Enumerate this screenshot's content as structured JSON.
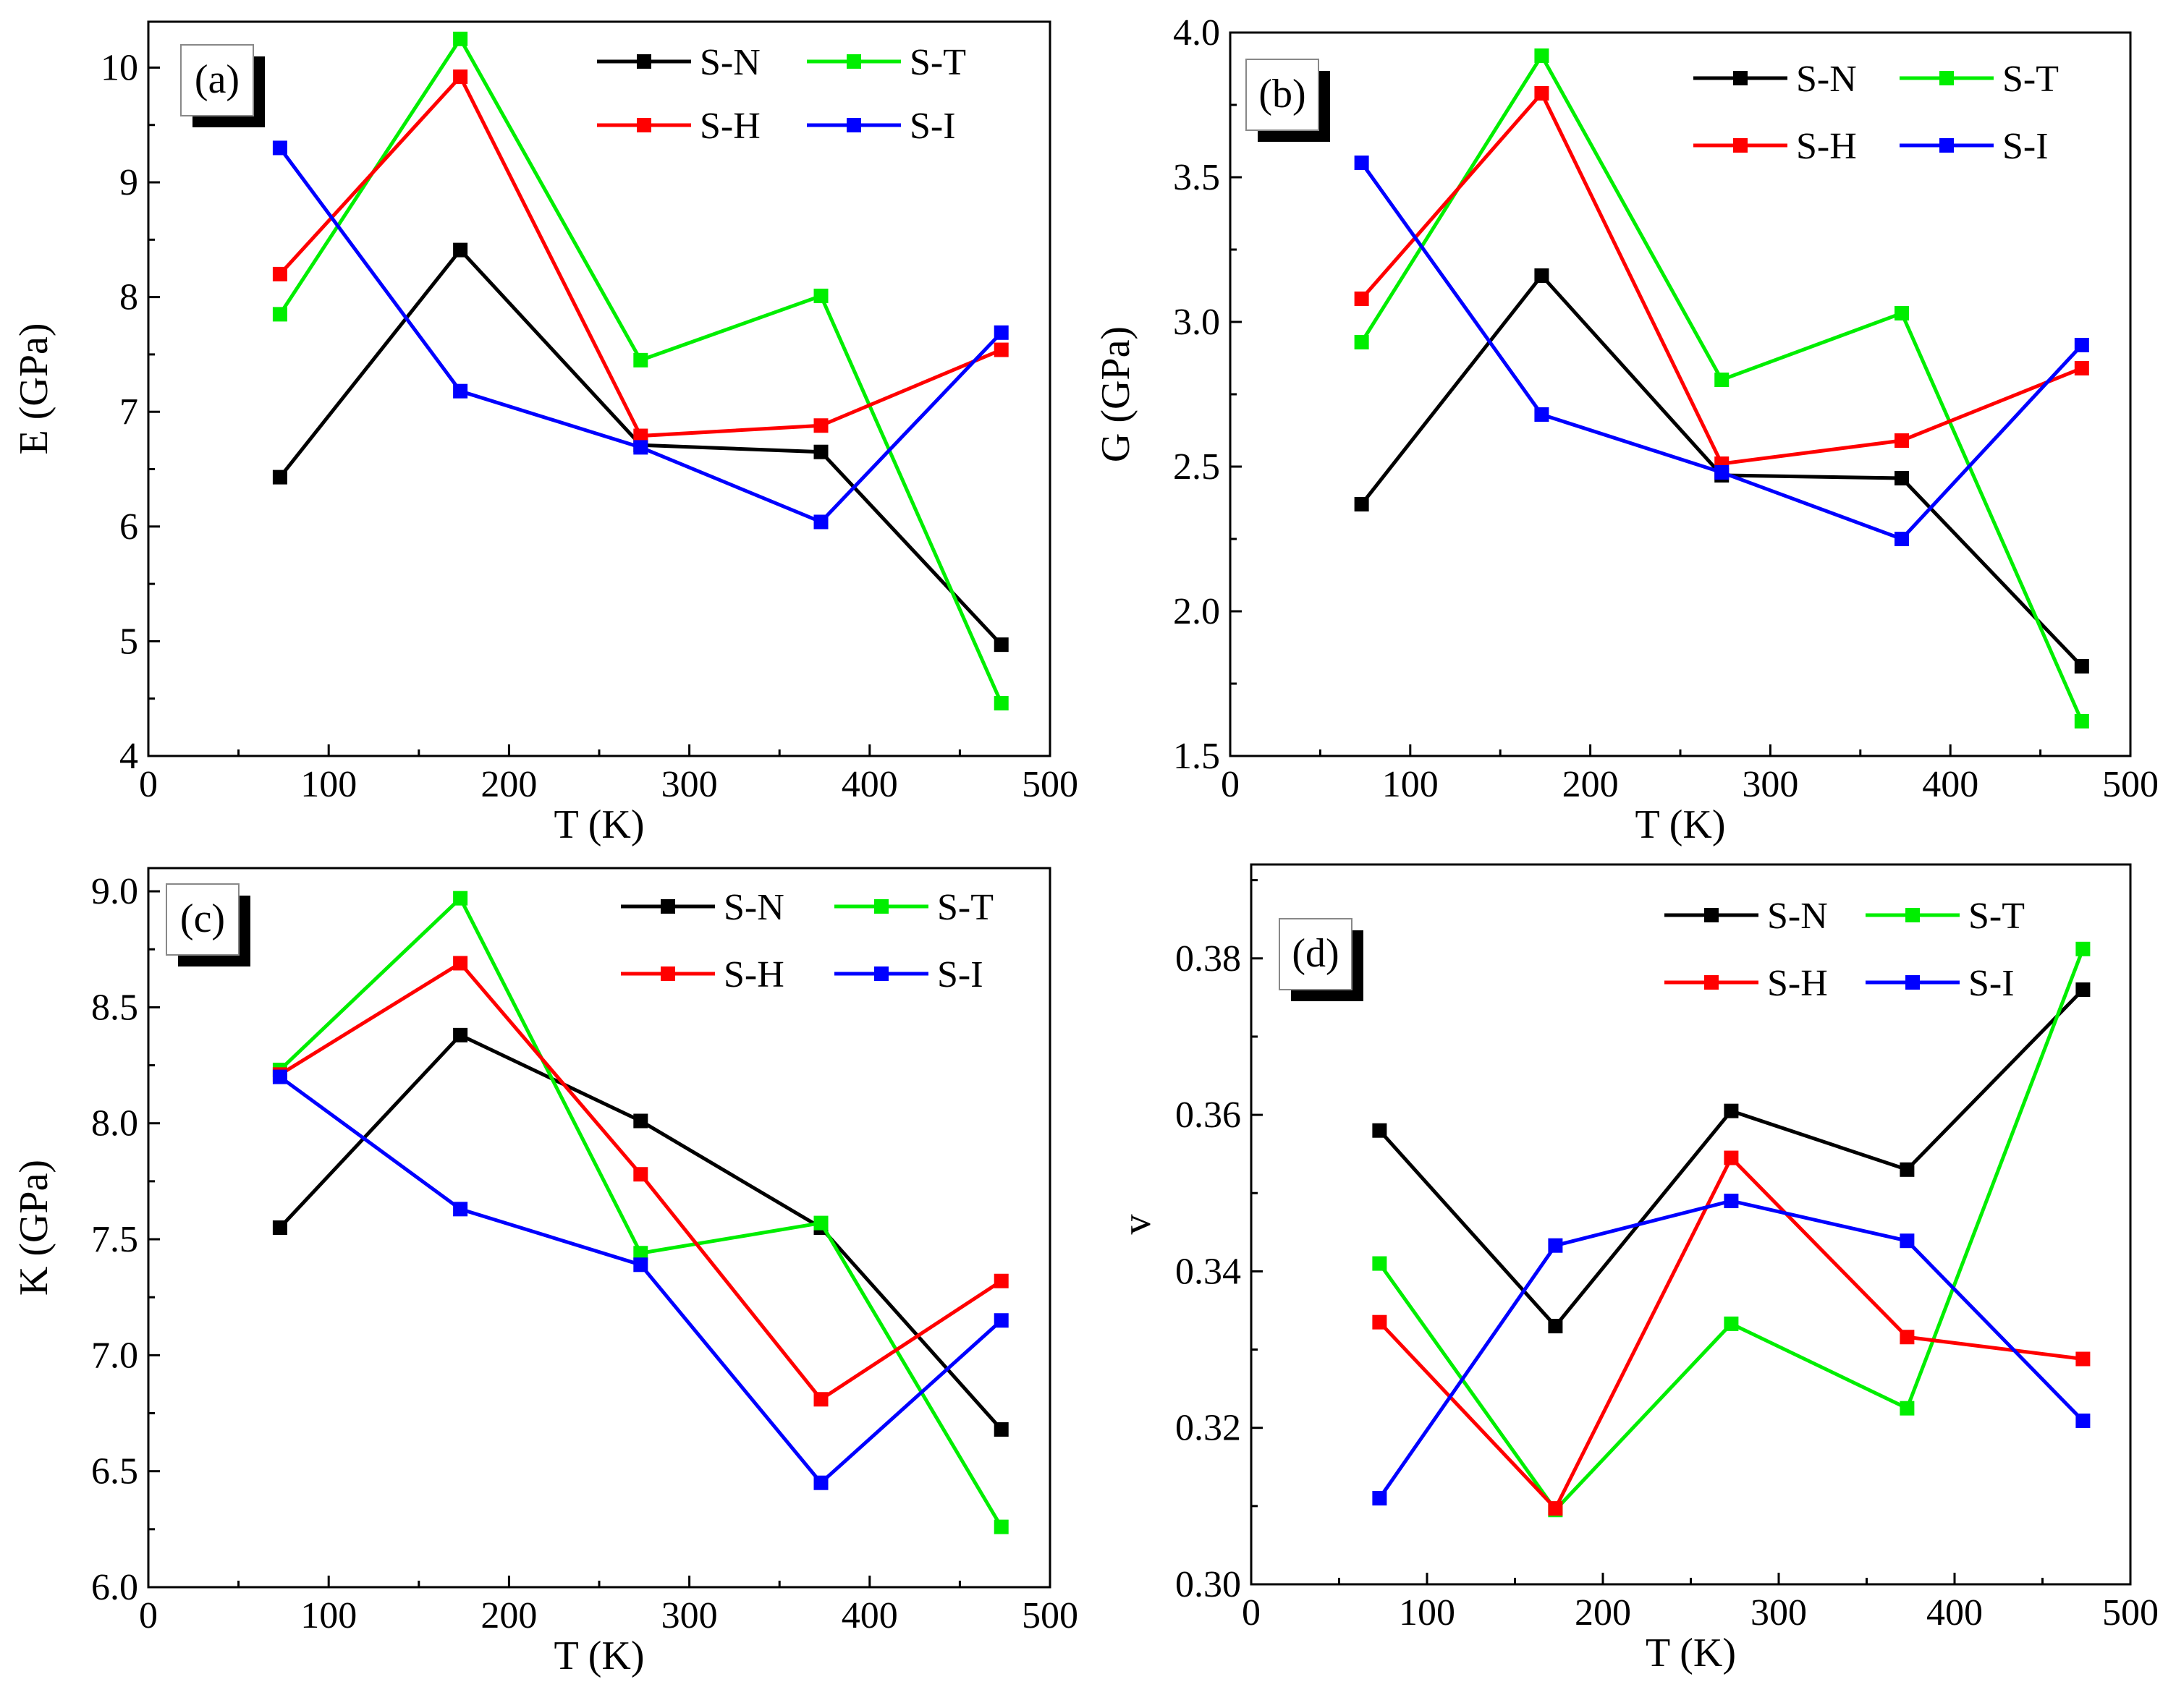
{
  "figure": {
    "colors": {
      "S-N": "#000000",
      "S-T": "#00ee00",
      "S-H": "#ff0000",
      "S-I": "#0000ff"
    }
  },
  "chart_data": [
    {
      "type": "line",
      "panel_label": "(a)",
      "xlabel": "T (K)",
      "ylabel": "E (GPa)",
      "xlim": [
        0,
        500
      ],
      "ylim": [
        4,
        10.4
      ],
      "xticks": [
        0,
        100,
        200,
        300,
        400,
        500
      ],
      "yticks": [
        4,
        5,
        6,
        7,
        8,
        9,
        10
      ],
      "ytick_decimals": 0,
      "legend_position": "top-right",
      "x": [
        73,
        173,
        273,
        373,
        473
      ],
      "series": [
        {
          "name": "S-N",
          "values": [
            6.43,
            8.41,
            6.71,
            6.65,
            4.97
          ]
        },
        {
          "name": "S-T",
          "values": [
            7.85,
            10.25,
            7.45,
            8.01,
            4.46
          ]
        },
        {
          "name": "S-H",
          "values": [
            8.2,
            9.92,
            6.79,
            6.88,
            7.54
          ]
        },
        {
          "name": "S-I",
          "values": [
            9.3,
            7.18,
            6.69,
            6.04,
            7.69
          ]
        }
      ]
    },
    {
      "type": "line",
      "panel_label": "(b)",
      "xlabel": "T (K)",
      "ylabel": "G (GPa)",
      "xlim": [
        0,
        500
      ],
      "ylim": [
        1.5,
        4.0
      ],
      "xticks": [
        0,
        100,
        200,
        300,
        400,
        500
      ],
      "yticks": [
        1.5,
        2.0,
        2.5,
        3.0,
        3.5,
        4.0
      ],
      "ytick_decimals": 1,
      "legend_position": "top-right",
      "x": [
        73,
        173,
        273,
        373,
        473
      ],
      "series": [
        {
          "name": "S-N",
          "values": [
            2.37,
            3.16,
            2.47,
            2.46,
            1.81
          ]
        },
        {
          "name": "S-T",
          "values": [
            2.93,
            3.92,
            2.8,
            3.03,
            1.62
          ]
        },
        {
          "name": "S-H",
          "values": [
            3.08,
            3.79,
            2.51,
            2.59,
            2.84
          ]
        },
        {
          "name": "S-I",
          "values": [
            3.55,
            2.68,
            2.48,
            2.25,
            2.92
          ]
        }
      ]
    },
    {
      "type": "line",
      "panel_label": "(c)",
      "xlabel": "T (K)",
      "ylabel": "K (GPa)",
      "xlim": [
        0,
        500
      ],
      "ylim": [
        6.0,
        9.1
      ],
      "xticks": [
        0,
        100,
        200,
        300,
        400,
        500
      ],
      "yticks": [
        6.0,
        6.5,
        7.0,
        7.5,
        8.0,
        8.5,
        9.0
      ],
      "ytick_decimals": 1,
      "legend_position": "top-right",
      "x": [
        73,
        173,
        273,
        373,
        473
      ],
      "series": [
        {
          "name": "S-N",
          "values": [
            7.55,
            8.38,
            8.01,
            7.55,
            6.68
          ]
        },
        {
          "name": "S-T",
          "values": [
            8.23,
            8.97,
            7.44,
            7.57,
            6.26
          ]
        },
        {
          "name": "S-H",
          "values": [
            8.21,
            8.69,
            7.78,
            6.81,
            7.32
          ]
        },
        {
          "name": "S-I",
          "values": [
            8.2,
            7.63,
            7.39,
            6.45,
            7.15
          ]
        }
      ]
    },
    {
      "type": "line",
      "panel_label": "(d)",
      "xlabel": "T (K)",
      "ylabel": "v",
      "xlim": [
        0,
        500
      ],
      "ylim": [
        0.3,
        0.392
      ],
      "xticks": [
        0,
        100,
        200,
        300,
        400,
        500
      ],
      "yticks": [
        0.3,
        0.32,
        0.34,
        0.36,
        0.38
      ],
      "ytick_decimals": 2,
      "legend_position": "top-right",
      "x": [
        73,
        173,
        273,
        373,
        473
      ],
      "series": [
        {
          "name": "S-N",
          "values": [
            0.358,
            0.333,
            0.3605,
            0.353,
            0.376
          ]
        },
        {
          "name": "S-T",
          "values": [
            0.341,
            0.3095,
            0.3333,
            0.3225,
            0.3812
          ]
        },
        {
          "name": "S-H",
          "values": [
            0.3335,
            0.3097,
            0.3545,
            0.3316,
            0.3288
          ]
        },
        {
          "name": "S-I",
          "values": [
            0.311,
            0.3433,
            0.349,
            0.3439,
            0.3209
          ]
        }
      ]
    }
  ]
}
